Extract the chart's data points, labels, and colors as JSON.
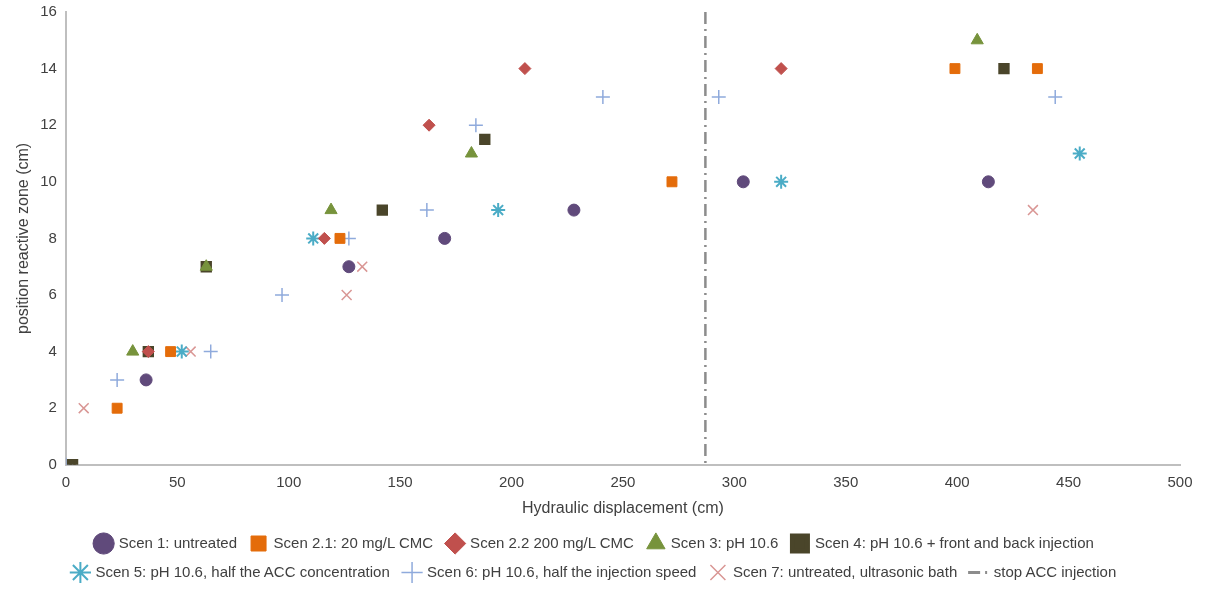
{
  "chart_data": {
    "type": "scatter",
    "xlabel": "Hydraulic displacement (cm)",
    "ylabel": "position reactive zone (cm)",
    "xlim": [
      0,
      500
    ],
    "xticks": [
      0,
      50,
      100,
      150,
      200,
      250,
      300,
      350,
      400,
      450,
      500
    ],
    "ylim": [
      0,
      16
    ],
    "yticks": [
      0,
      2,
      4,
      6,
      8,
      10,
      12,
      14,
      16
    ],
    "legend": "bottom",
    "series": [
      {
        "name": "Scen 1: untreated",
        "color": "#604a7b",
        "marker": "circle",
        "x": [
          36,
          127,
          170,
          228,
          304,
          414
        ],
        "values": [
          3,
          7,
          8,
          9,
          10,
          10
        ]
      },
      {
        "name": "Scen 2.1: 20 mg/L CMC",
        "color": "#e46c0a",
        "marker": "square",
        "x": [
          23,
          47,
          123,
          272,
          399,
          436
        ],
        "values": [
          2,
          4,
          8,
          10,
          14,
          14
        ]
      },
      {
        "name": "Scen 2.2 200 mg/L CMC",
        "color": "#c0504d",
        "marker": "diamond",
        "x": [
          37,
          116,
          163,
          206,
          321
        ],
        "values": [
          4,
          8,
          12,
          14,
          14
        ]
      },
      {
        "name": "Scen 3: pH 10.6",
        "color": "#77933c",
        "marker": "triangle",
        "x": [
          30,
          63,
          119,
          182,
          409
        ],
        "values": [
          4,
          7,
          9,
          11,
          15
        ]
      },
      {
        "name": "Scen 4: pH 10.6 + front and back injection",
        "color": "#4a452a",
        "x": [
          3,
          37,
          63,
          142,
          188,
          421
        ],
        "values": [
          0,
          4,
          7,
          9,
          11.5,
          14
        ]
      },
      {
        "name": "Scen 5: pH 10.6, half the ACC concentration",
        "color": "#4bacc6",
        "x": [
          52,
          111,
          194,
          321,
          455
        ],
        "values": [
          4,
          8,
          9,
          10,
          11
        ]
      },
      {
        "name": "Scen 6: pH 10.6, half the injection speed",
        "color": "#8faadc",
        "marker": "cross",
        "x": [
          0,
          23,
          65,
          97,
          127,
          162,
          184,
          241,
          293,
          444
        ],
        "values": [
          0,
          3,
          4,
          6,
          8,
          9,
          12,
          13,
          13,
          13
        ]
      },
      {
        "name": "Scen 7: untreated, ultrasonic bath",
        "color": "#d99694",
        "marker": "x",
        "x": [
          8,
          56,
          126,
          133,
          434
        ],
        "values": [
          2,
          4,
          6,
          7,
          9
        ]
      }
    ],
    "ref_lines": [
      {
        "axis": "x",
        "value": 287,
        "label": "stop ACC injection",
        "color": "#8c8c8c",
        "line_style": "dashdot"
      }
    ]
  }
}
